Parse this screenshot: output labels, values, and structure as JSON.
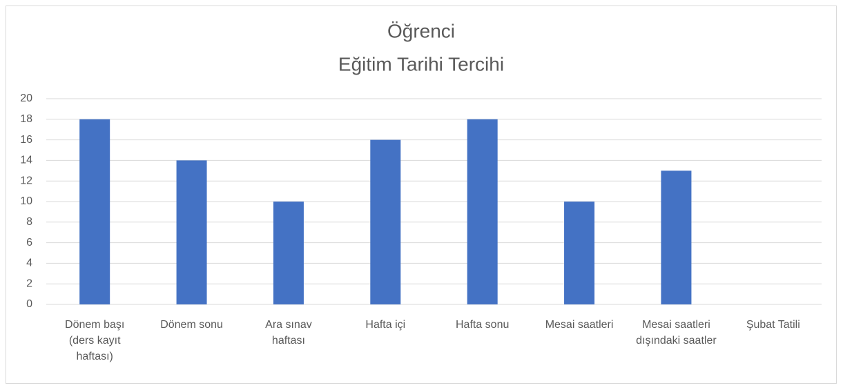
{
  "chart_data": {
    "type": "bar",
    "title": [
      "Öğrenci",
      "Eğitim Tarihi Tercihi"
    ],
    "categories": [
      "Dönem başı (ders kayıt haftası)",
      "Dönem sonu",
      "Ara sınav haftası",
      "Hafta içi",
      "Hafta sonu",
      "Mesai saatleri",
      "Mesai saatleri dışındaki saatler",
      "Şubat Tatili"
    ],
    "values": [
      18,
      14,
      10,
      16,
      18,
      10,
      13,
      0
    ],
    "color": "#4472c4",
    "ylim": [
      0,
      20
    ],
    "yticks": [
      0,
      2,
      4,
      6,
      8,
      10,
      12,
      14,
      16,
      18,
      20
    ],
    "grid": true
  }
}
